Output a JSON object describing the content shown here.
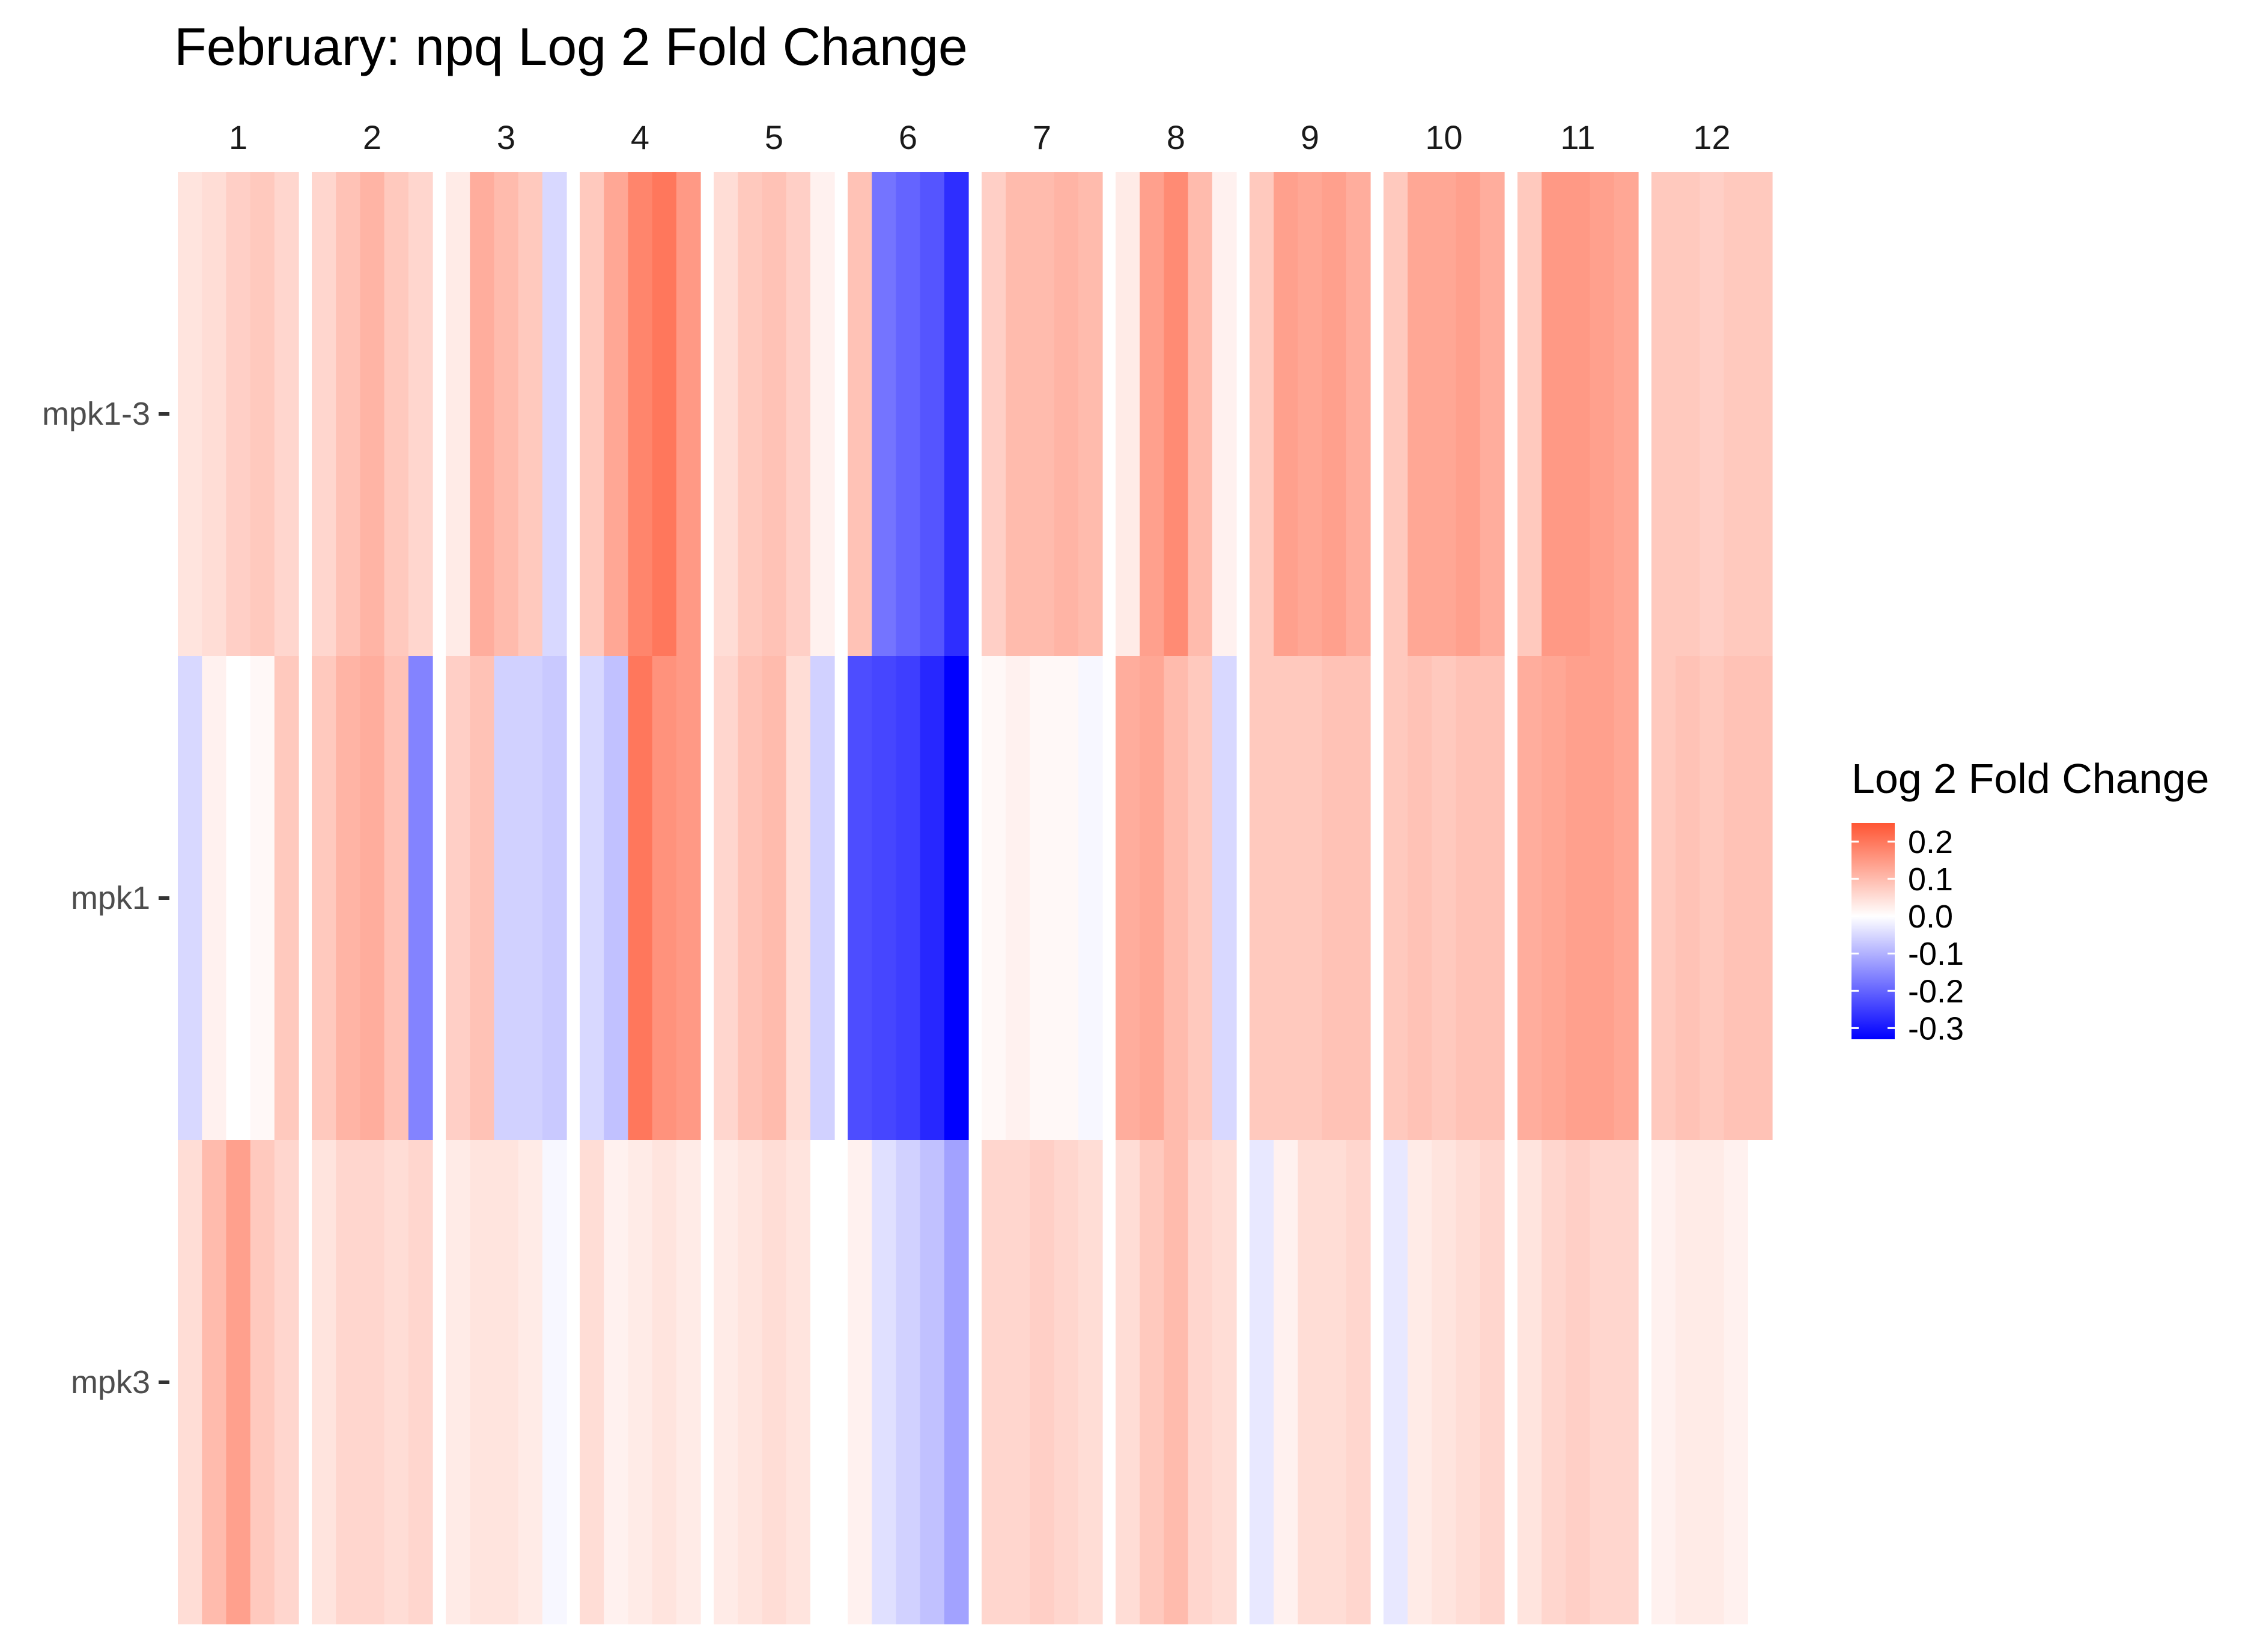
{
  "chart_data": {
    "type": "heatmap",
    "title": "February: npq Log 2 Fold Change",
    "columns": [
      "1",
      "2",
      "3",
      "4",
      "5",
      "6",
      "7",
      "8",
      "9",
      "10",
      "11",
      "12"
    ],
    "rows": [
      "mpk1-3",
      "mpk1",
      "mpk3"
    ],
    "legend": {
      "title": "Log 2 Fold Change",
      "placement": "right",
      "ticks": [
        "0.2",
        "0.1",
        "0.0",
        "-0.1",
        "-0.2",
        "-0.3"
      ],
      "range": [
        -0.33,
        0.25
      ],
      "colors": {
        "low": "#0000ff",
        "mid": "#ffffff",
        "high": "#ff5533"
      }
    },
    "grid": false,
    "cells": {
      "mpk1-3": [
        [
          0.04,
          0.06,
          0.03,
          0.08,
          0.05,
          0.09,
          0.07,
          0.03,
          0.08,
          0.08,
          0.08,
          0.08
        ],
        [
          0.05,
          0.09,
          0.12,
          0.13,
          0.08,
          -0.18,
          0.1,
          0.14,
          0.14,
          0.13,
          0.15,
          0.08
        ],
        [
          0.07,
          0.11,
          0.1,
          0.18,
          0.09,
          -0.2,
          0.1,
          0.17,
          0.13,
          0.13,
          0.15,
          0.07
        ],
        [
          0.08,
          0.08,
          0.08,
          0.2,
          0.07,
          -0.22,
          0.11,
          0.1,
          0.14,
          0.14,
          0.14,
          0.08
        ],
        [
          0.06,
          0.06,
          -0.05,
          0.15,
          0.02,
          -0.27,
          0.1,
          0.02,
          0.12,
          0.12,
          0.13,
          0.08
        ]
      ],
      "mpk1": [
        [
          -0.05,
          0.08,
          0.07,
          -0.05,
          0.06,
          -0.23,
          0.01,
          0.12,
          0.08,
          0.08,
          0.12,
          0.08
        ],
        [
          0.02,
          0.11,
          0.09,
          -0.08,
          0.09,
          -0.24,
          0.02,
          0.13,
          0.08,
          0.09,
          0.13,
          0.09
        ],
        [
          0.0,
          0.12,
          -0.06,
          0.2,
          0.1,
          -0.25,
          0.01,
          0.1,
          0.08,
          0.08,
          0.14,
          0.08
        ],
        [
          0.01,
          0.09,
          -0.06,
          0.16,
          0.05,
          -0.28,
          0.01,
          0.08,
          0.09,
          0.09,
          0.14,
          0.09
        ],
        [
          0.08,
          -0.16,
          -0.07,
          0.15,
          -0.06,
          -0.33,
          -0.01,
          -0.05,
          0.09,
          0.09,
          0.13,
          0.09
        ]
      ],
      "mpk3": [
        [
          0.05,
          0.04,
          0.03,
          0.05,
          0.03,
          0.02,
          0.06,
          0.05,
          -0.03,
          -0.03,
          0.04,
          0.02
        ],
        [
          0.1,
          0.06,
          0.04,
          0.02,
          0.04,
          -0.04,
          0.06,
          0.08,
          0.02,
          0.03,
          0.06,
          0.03
        ],
        [
          0.14,
          0.06,
          0.04,
          0.03,
          0.05,
          -0.06,
          0.07,
          0.1,
          0.05,
          0.04,
          0.07,
          0.03
        ],
        [
          0.08,
          0.05,
          0.03,
          0.04,
          0.04,
          -0.08,
          0.06,
          0.06,
          0.05,
          0.05,
          0.06,
          0.02
        ],
        [
          0.06,
          0.06,
          -0.01,
          0.03,
          0.0,
          -0.12,
          0.05,
          0.05,
          0.06,
          0.06,
          0.06,
          0.0
        ]
      ]
    }
  }
}
